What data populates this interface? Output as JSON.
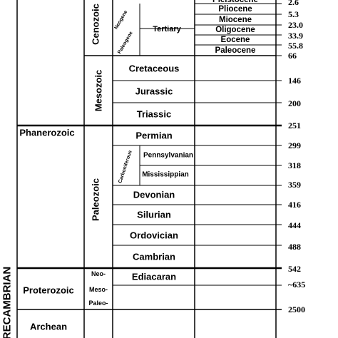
{
  "super_eon": "PRECAMBRIAN",
  "eons": [
    {
      "key": "phanerozoic",
      "label": "Phanerozoic"
    },
    {
      "key": "proterozoic",
      "label": "Proterozoic"
    },
    {
      "key": "archean",
      "label": "Archean"
    }
  ],
  "eras": [
    {
      "key": "cenozoic",
      "label": "Cenozoic"
    },
    {
      "key": "mesozoic",
      "label": "Mesozoic"
    },
    {
      "key": "paleozoic",
      "label": "Paleozoic"
    }
  ],
  "proterozoic_eras": [
    "Neo-",
    "Meso-",
    "Paleo-"
  ],
  "sub_eras": {
    "neogene": "Neogene",
    "paleogene": "Paleogene",
    "tertiary": "Tertiary",
    "carboniferous": "Carboniferous"
  },
  "epochs": [
    "Pleistocene",
    "Pliocene",
    "Miocene",
    "Oligocene",
    "Eocene",
    "Paleocene"
  ],
  "periods": [
    {
      "key": "cretaceous",
      "label": "Cretaceous"
    },
    {
      "key": "jurassic",
      "label": "Jurassic"
    },
    {
      "key": "triassic",
      "label": "Triassic"
    },
    {
      "key": "permian",
      "label": "Permian"
    },
    {
      "key": "pennsylvanian",
      "label": "Pennsylvanian"
    },
    {
      "key": "mississippian",
      "label": "Mississippian"
    },
    {
      "key": "devonian",
      "label": "Devonian"
    },
    {
      "key": "silurian",
      "label": "Silurian"
    },
    {
      "key": "ordovician",
      "label": "Ordovician"
    },
    {
      "key": "cambrian",
      "label": "Cambrian"
    },
    {
      "key": "ediacaran",
      "label": "Ediacaran"
    }
  ],
  "ages": [
    "2.6",
    "5.3",
    "23.0",
    "33.9",
    "55.8",
    "66",
    "146",
    "200",
    "251",
    "299",
    "318",
    "359",
    "416",
    "444",
    "488",
    "542",
    "~635",
    "2500"
  ]
}
